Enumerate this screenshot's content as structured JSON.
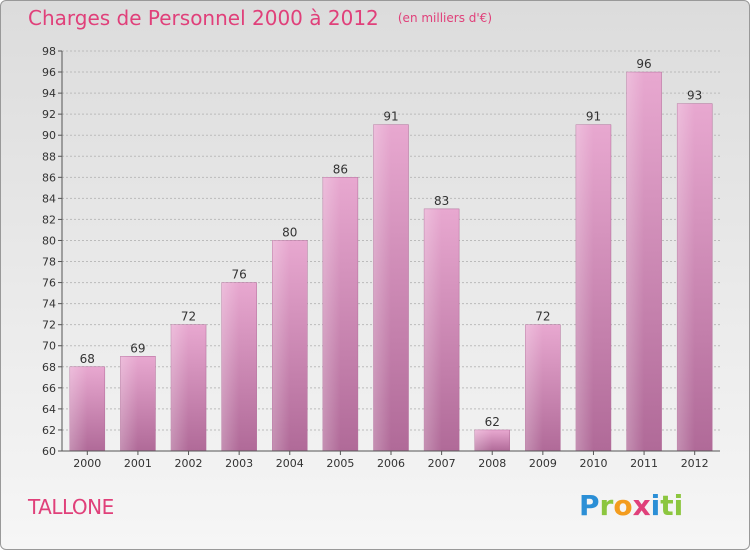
{
  "header": {
    "title": "Charges de Personnel 2000 à 2012",
    "subtitle": "(en milliers d'€)"
  },
  "footer": {
    "commune": "TALLONE",
    "logo_text": "Proxiti",
    "logo_letters": [
      "P",
      "r",
      "o",
      "x",
      "i",
      "ti"
    ]
  },
  "colors": {
    "bar_top": "#e8a8d0",
    "bar_bottom": "#b06a98",
    "title": "#e0407a",
    "grid": "#bbbbbb"
  },
  "chart_data": {
    "type": "bar",
    "title": "Charges de Personnel 2000 à 2012",
    "subtitle": "(en milliers d'€)",
    "categories": [
      "2000",
      "2001",
      "2002",
      "2003",
      "2004",
      "2005",
      "2006",
      "2007",
      "2008",
      "2009",
      "2010",
      "2011",
      "2012"
    ],
    "values": [
      68,
      69,
      72,
      76,
      80,
      86,
      91,
      83,
      62,
      72,
      91,
      96,
      93
    ],
    "ylim": [
      60,
      98
    ],
    "yticks": [
      60,
      62,
      64,
      66,
      68,
      70,
      72,
      74,
      76,
      78,
      80,
      82,
      84,
      86,
      88,
      90,
      92,
      94,
      96,
      98
    ],
    "grid": true,
    "legend": "none"
  }
}
